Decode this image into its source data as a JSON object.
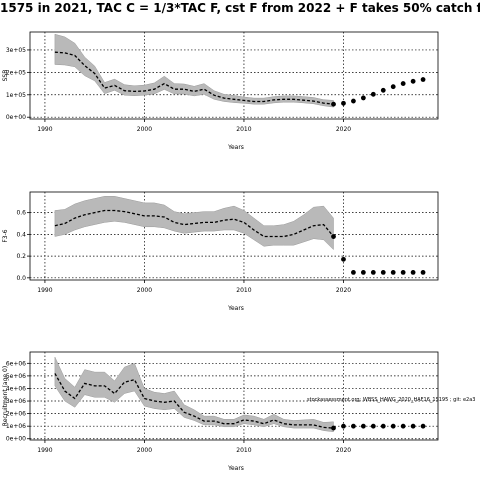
{
  "title": "1575 in 2021, TAC C = 1/3*TAC F, cst F from 2022 + F takes 50% catch fr",
  "annotation": "stockassessment.org: WBSS_HAWG_2020_HAF16_1S195 ; git: e2a3",
  "chart_data": [
    {
      "type": "line",
      "panel": "ssb",
      "xlabel": "Years",
      "ylabel": "SSB",
      "xlim": [
        1988.5,
        2029.5
      ],
      "ylim": [
        -8000,
        380000
      ],
      "xticks": [
        1990,
        2000,
        2010,
        2020
      ],
      "yticks": [
        0,
        100000,
        200000,
        300000
      ],
      "ytick_labels": [
        "0e+00",
        "1e+05",
        "2e+05",
        "3e+05"
      ],
      "grid": true,
      "years": [
        1991,
        1992,
        1993,
        1994,
        1995,
        1996,
        1997,
        1998,
        1999,
        2000,
        2001,
        2002,
        2003,
        2004,
        2005,
        2006,
        2007,
        2008,
        2009,
        2010,
        2011,
        2012,
        2013,
        2014,
        2015,
        2016,
        2017,
        2018,
        2019
      ],
      "median": [
        290000,
        287000,
        275000,
        230000,
        195000,
        130000,
        142000,
        118000,
        115000,
        117000,
        125000,
        150000,
        125000,
        125000,
        115000,
        125000,
        98000,
        85000,
        80000,
        75000,
        70000,
        70000,
        77000,
        80000,
        80000,
        76000,
        72000,
        63000,
        58000
      ],
      "lower": [
        235000,
        233000,
        225000,
        185000,
        162000,
        105000,
        120000,
        98000,
        96000,
        98000,
        104000,
        124000,
        104000,
        103000,
        95000,
        102000,
        80000,
        70000,
        65000,
        62000,
        58000,
        58000,
        64000,
        67000,
        67000,
        64000,
        60000,
        51000,
        45000
      ],
      "upper": [
        370000,
        358000,
        330000,
        268000,
        228000,
        155000,
        170000,
        145000,
        140000,
        143000,
        153000,
        183000,
        150000,
        148000,
        138000,
        150000,
        118000,
        102000,
        97000,
        90000,
        85000,
        85000,
        92000,
        95000,
        95000,
        92000,
        88000,
        78000,
        75000
      ],
      "forecast_x": [
        2019,
        2020,
        2021,
        2022,
        2023,
        2024,
        2025,
        2026,
        2027,
        2028
      ],
      "forecast_y": [
        58000,
        62000,
        72000,
        86000,
        102000,
        120000,
        136000,
        150000,
        160000,
        168000
      ]
    },
    {
      "type": "line",
      "panel": "fbar",
      "xlabel": "Years",
      "ylabel": "F3-6",
      "xlim": [
        1988.5,
        2029.5
      ],
      "ylim": [
        -0.02,
        0.79
      ],
      "xticks": [
        1990,
        2000,
        2010,
        2020
      ],
      "yticks": [
        0,
        0.2,
        0.4,
        0.6
      ],
      "ytick_labels": [
        "0.0",
        "0.2",
        "0.4",
        "0.6"
      ],
      "grid": true,
      "years": [
        1991,
        1992,
        1993,
        1994,
        1995,
        1996,
        1997,
        1998,
        1999,
        2000,
        2001,
        2002,
        2003,
        2004,
        2005,
        2006,
        2007,
        2008,
        2009,
        2010,
        2011,
        2012,
        2013,
        2014,
        2015,
        2016,
        2017,
        2018,
        2019
      ],
      "median": [
        0.48,
        0.5,
        0.55,
        0.58,
        0.6,
        0.62,
        0.62,
        0.61,
        0.59,
        0.57,
        0.57,
        0.56,
        0.51,
        0.49,
        0.5,
        0.51,
        0.51,
        0.53,
        0.54,
        0.51,
        0.44,
        0.38,
        0.38,
        0.38,
        0.4,
        0.44,
        0.48,
        0.49,
        0.38
      ],
      "lower": [
        0.38,
        0.4,
        0.44,
        0.47,
        0.49,
        0.51,
        0.52,
        0.51,
        0.49,
        0.47,
        0.47,
        0.46,
        0.43,
        0.41,
        0.42,
        0.43,
        0.43,
        0.44,
        0.44,
        0.41,
        0.35,
        0.29,
        0.3,
        0.3,
        0.3,
        0.33,
        0.36,
        0.35,
        0.26
      ],
      "upper": [
        0.62,
        0.63,
        0.68,
        0.71,
        0.73,
        0.75,
        0.75,
        0.73,
        0.71,
        0.69,
        0.69,
        0.67,
        0.61,
        0.59,
        0.6,
        0.61,
        0.61,
        0.64,
        0.66,
        0.62,
        0.55,
        0.48,
        0.48,
        0.49,
        0.52,
        0.58,
        0.65,
        0.66,
        0.55
      ],
      "forecast_x": [
        2019,
        2020,
        2021,
        2022,
        2023,
        2024,
        2025,
        2026,
        2027,
        2028
      ],
      "forecast_y": [
        0.38,
        0.17,
        0.05,
        0.05,
        0.05,
        0.05,
        0.05,
        0.05,
        0.05,
        0.05
      ]
    },
    {
      "type": "line",
      "panel": "recruitment",
      "xlabel": "Years",
      "ylabel": "Recruitment (age 0)",
      "xlim": [
        1988.5,
        2029.5
      ],
      "ylim": [
        -100000,
        6900000
      ],
      "xticks": [
        1990,
        2000,
        2010,
        2020
      ],
      "yticks": [
        0,
        1000000,
        2000000,
        3000000,
        4000000,
        5000000,
        6000000
      ],
      "ytick_labels": [
        "0e+00",
        "1e+06",
        "2e+06",
        "3e+06",
        "4e+06",
        "5e+06",
        "6e+06"
      ],
      "grid": true,
      "years": [
        1991,
        1992,
        1993,
        1994,
        1995,
        1996,
        1997,
        1998,
        1999,
        2000,
        2001,
        2002,
        2003,
        2004,
        2005,
        2006,
        2007,
        2008,
        2009,
        2010,
        2011,
        2012,
        2013,
        2014,
        2015,
        2016,
        2017,
        2018,
        2019
      ],
      "median": [
        5200000,
        3800000,
        3200000,
        4400000,
        4200000,
        4200000,
        3600000,
        4500000,
        4700000,
        3200000,
        3000000,
        2900000,
        3000000,
        2100000,
        1800000,
        1400000,
        1400000,
        1200000,
        1200000,
        1500000,
        1400000,
        1200000,
        1500000,
        1200000,
        1100000,
        1100000,
        1100000,
        900000,
        850000
      ],
      "lower": [
        4200000,
        3000000,
        2500000,
        3500000,
        3300000,
        3300000,
        2900000,
        3600000,
        3800000,
        2600000,
        2400000,
        2300000,
        2400000,
        1700000,
        1450000,
        1100000,
        1100000,
        950000,
        950000,
        1200000,
        1100000,
        950000,
        1200000,
        950000,
        850000,
        850000,
        850000,
        650000,
        550000
      ],
      "upper": [
        6500000,
        4800000,
        4100000,
        5500000,
        5300000,
        5300000,
        4600000,
        5700000,
        6000000,
        4000000,
        3700000,
        3600000,
        3800000,
        2700000,
        2300000,
        1800000,
        1800000,
        1550000,
        1550000,
        1900000,
        1800000,
        1550000,
        1950000,
        1550000,
        1450000,
        1500000,
        1550000,
        1300000,
        1350000
      ],
      "forecast_x": [
        2019,
        2020,
        2021,
        2022,
        2023,
        2024,
        2025,
        2026,
        2027,
        2028
      ],
      "forecast_y": [
        850000,
        1000000,
        1000000,
        1000000,
        1000000,
        1000000,
        1000000,
        1000000,
        1000000,
        1000000
      ]
    }
  ]
}
